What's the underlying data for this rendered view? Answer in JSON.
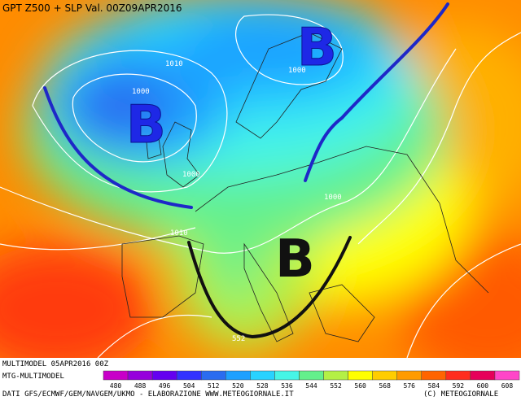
{
  "header": {
    "title": "GPT Z500 + SLP Val. 00Z09APR2016"
  },
  "map": {
    "pressure_labels": [
      "1010",
      "1000",
      "1000",
      "1000",
      "1000",
      "1010",
      "552"
    ],
    "centers": [
      "B",
      "B",
      "B"
    ]
  },
  "footer": {
    "run": "MULTIMODEL 05APR2016 00Z",
    "model": "MTG-MULTIMODEL",
    "sources": "DATI GFS/ECMWF/GEM/NAVGEM/UKMO - ELABORAZIONE WWW.METEOGIORNALE.IT",
    "copyright": "(C) METEOGIORNALE"
  },
  "legend": {
    "values": [
      480,
      488,
      496,
      504,
      512,
      520,
      528,
      536,
      544,
      552,
      560,
      568,
      576,
      584,
      592,
      600,
      608
    ],
    "colors": [
      "#c800c8",
      "#9600dc",
      "#6400f0",
      "#3232ff",
      "#2a6cf0",
      "#1ea0ff",
      "#28d2ff",
      "#46f5e6",
      "#64f08c",
      "#b4f046",
      "#ffff00",
      "#ffcd00",
      "#ff9b00",
      "#ff6400",
      "#ff2d1e",
      "#e6005a",
      "#ff46c8"
    ]
  }
}
